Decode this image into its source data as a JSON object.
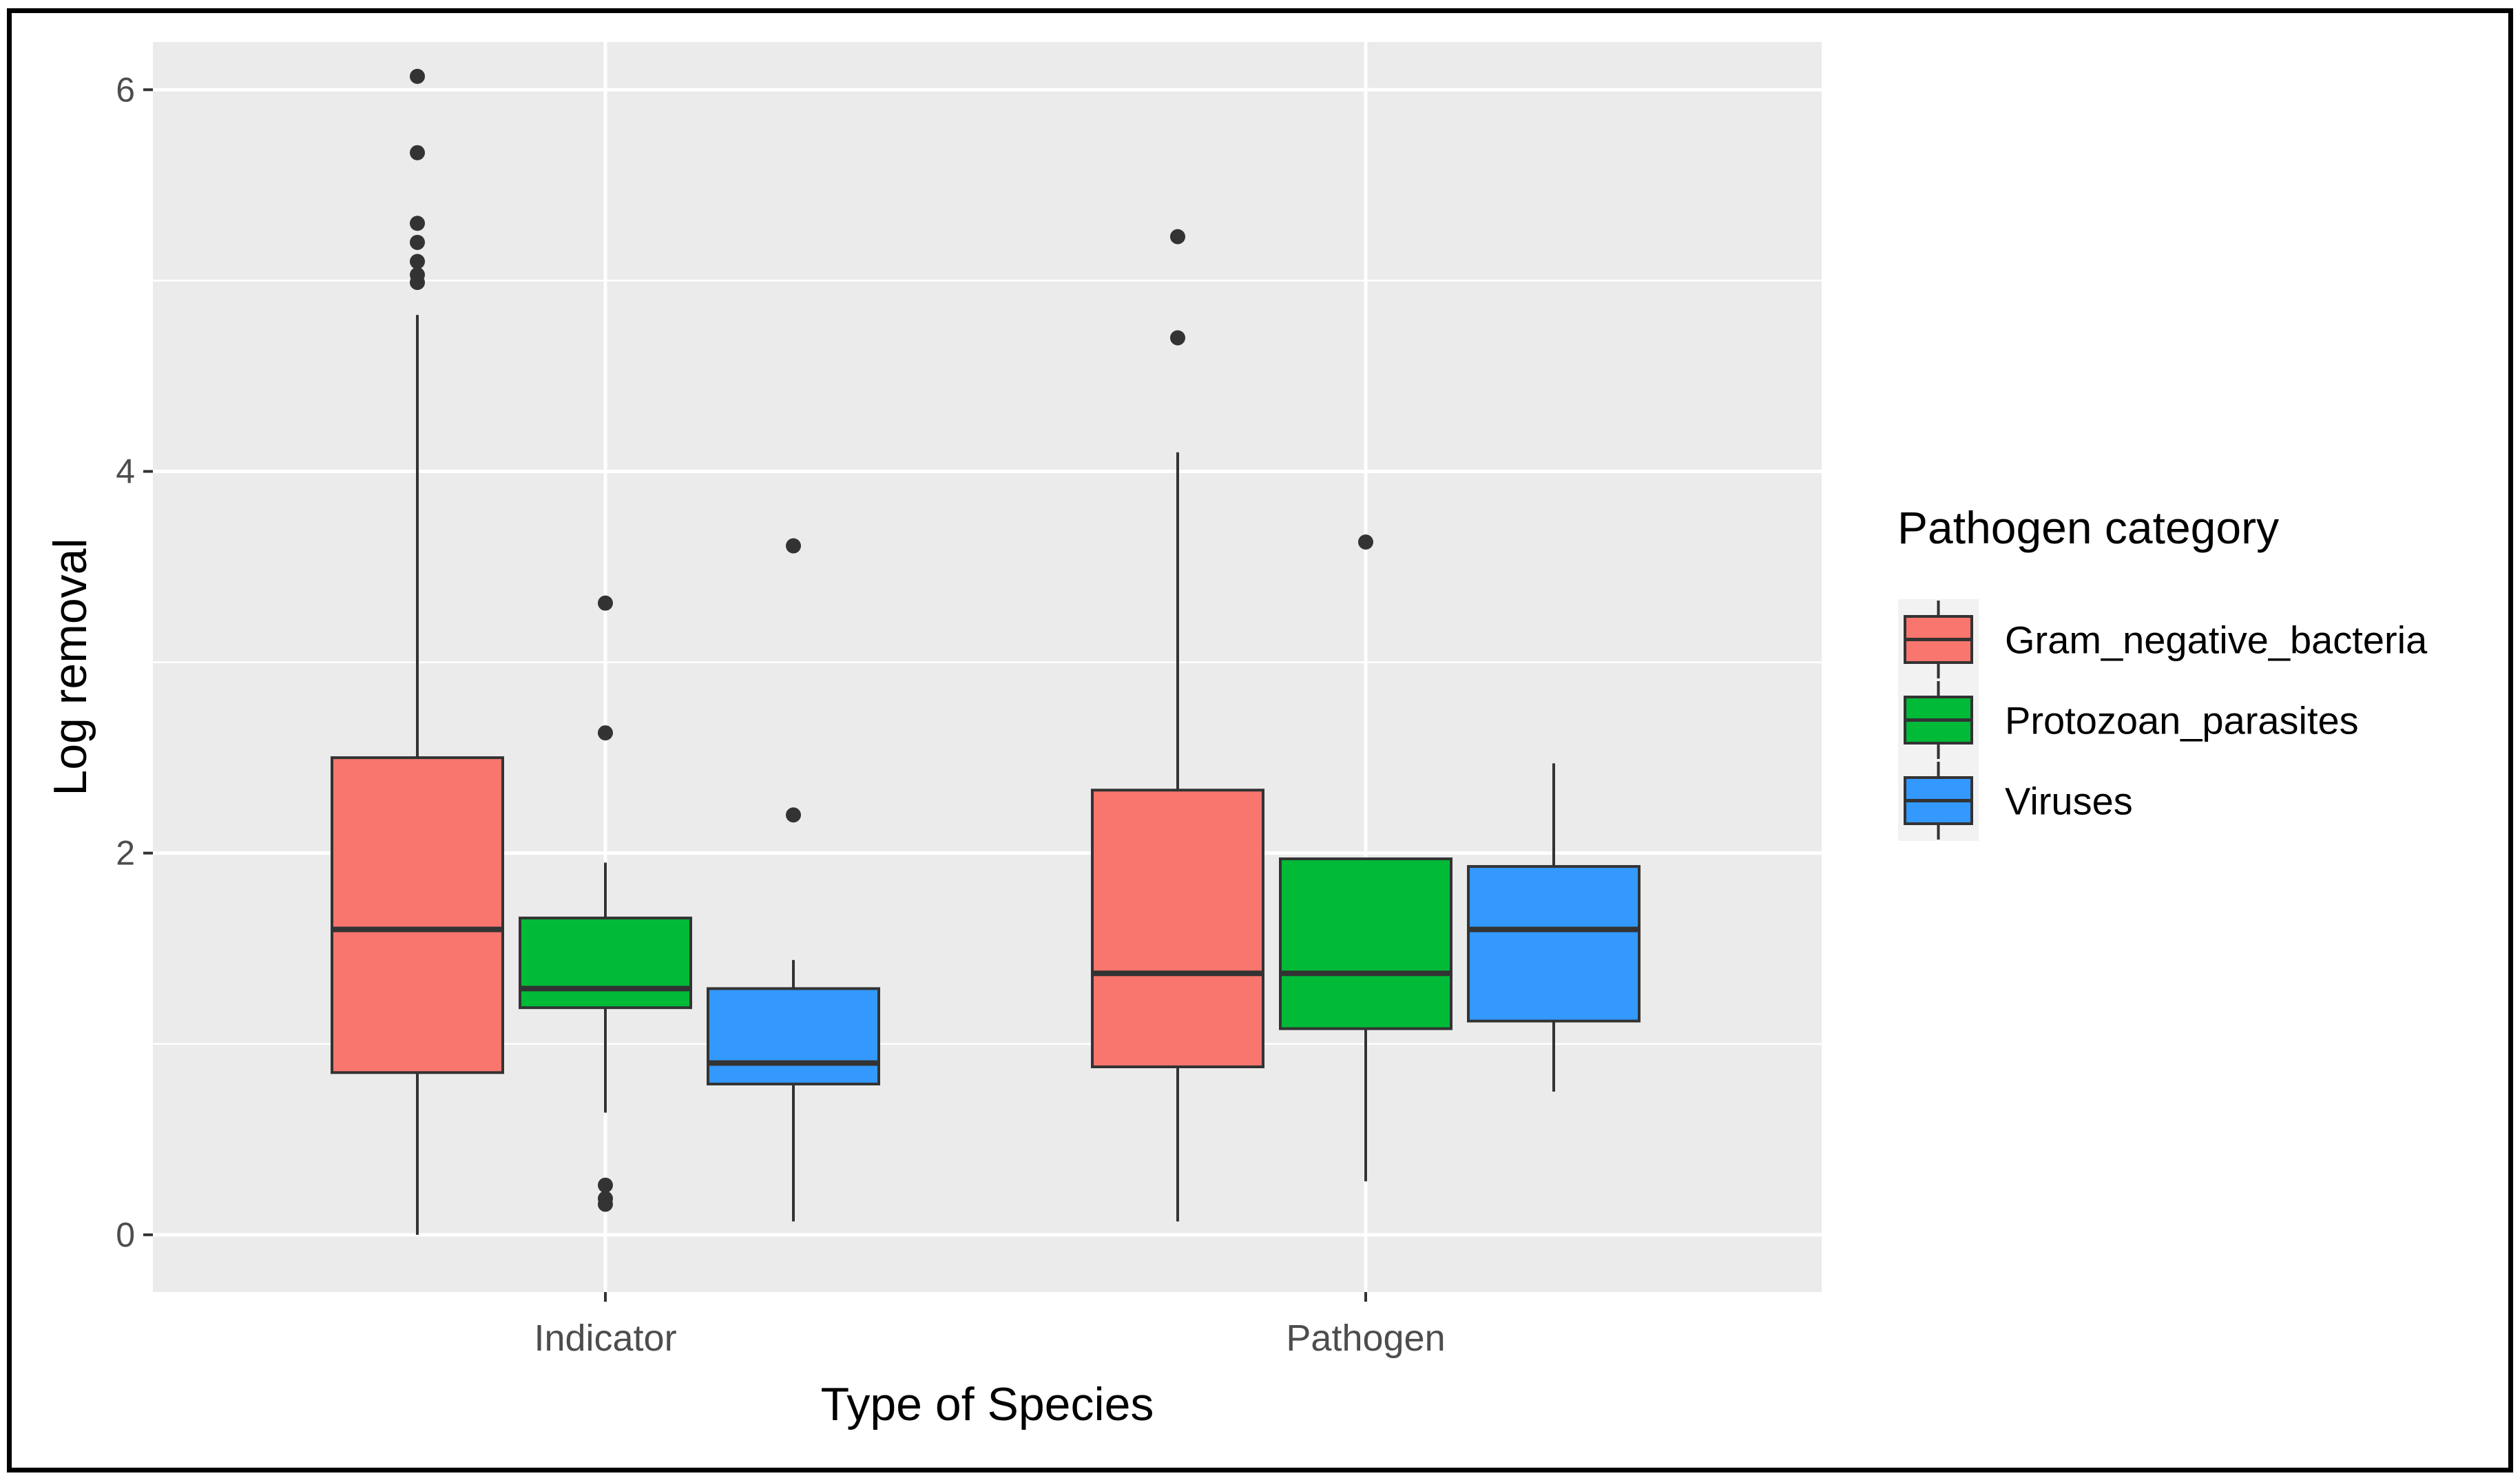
{
  "chart_data": {
    "type": "boxplot",
    "title": "",
    "xlabel": "Type of Species",
    "ylabel": "Log removal",
    "categories": [
      "Indicator",
      "Pathogen"
    ],
    "ylim": [
      -0.3,
      6.25
    ],
    "yticks": [
      0,
      2,
      4,
      6
    ],
    "grid": true,
    "legend": {
      "title": "Pathogen category",
      "position": "right"
    },
    "series": [
      {
        "name": "Gram_negative_bacteria",
        "color": "#F8766D",
        "boxes": [
          {
            "category": "Indicator",
            "whisker_low": 0.0,
            "q1": 0.85,
            "median": 1.6,
            "q3": 2.5,
            "whisker_high": 4.82,
            "outliers": [
              6.07,
              5.67,
              5.3,
              5.2,
              5.1,
              5.03,
              4.99
            ]
          },
          {
            "category": "Pathogen",
            "whisker_low": 0.07,
            "q1": 0.88,
            "median": 1.37,
            "q3": 2.33,
            "whisker_high": 4.1,
            "outliers": [
              5.23,
              4.7
            ]
          }
        ]
      },
      {
        "name": "Protozoan_parasites",
        "color": "#00BA38",
        "boxes": [
          {
            "category": "Indicator",
            "whisker_low": 0.64,
            "q1": 1.19,
            "median": 1.29,
            "q3": 1.66,
            "whisker_high": 1.95,
            "outliers": [
              3.31,
              2.63,
              0.26,
              0.19,
              0.16
            ]
          },
          {
            "category": "Pathogen",
            "whisker_low": 0.28,
            "q1": 1.08,
            "median": 1.37,
            "q3": 1.97,
            "whisker_high": 1.97,
            "outliers": [
              3.63
            ]
          }
        ]
      },
      {
        "name": "Viruses",
        "color": "#3399FF",
        "boxes": [
          {
            "category": "Indicator",
            "whisker_low": 0.07,
            "q1": 0.79,
            "median": 0.9,
            "q3": 1.29,
            "whisker_high": 1.44,
            "outliers": [
              3.61,
              2.2
            ]
          },
          {
            "category": "Pathogen",
            "whisker_low": 0.75,
            "q1": 1.12,
            "median": 1.6,
            "q3": 1.93,
            "whisker_high": 2.47,
            "outliers": []
          }
        ]
      }
    ]
  }
}
